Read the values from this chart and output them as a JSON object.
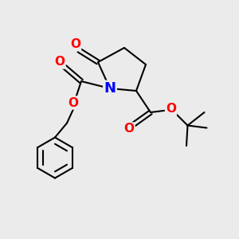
{
  "bg_color": "#ebebeb",
  "atom_colors": {
    "O": "#ff0000",
    "N": "#0000ff",
    "C": "#000000"
  },
  "bond_color": "#000000",
  "bond_width": 1.5,
  "font_size_atom": 11,
  "fig_size": [
    3.0,
    3.0
  ],
  "dpi": 100,
  "xlim": [
    0,
    10
  ],
  "ylim": [
    0,
    10
  ]
}
